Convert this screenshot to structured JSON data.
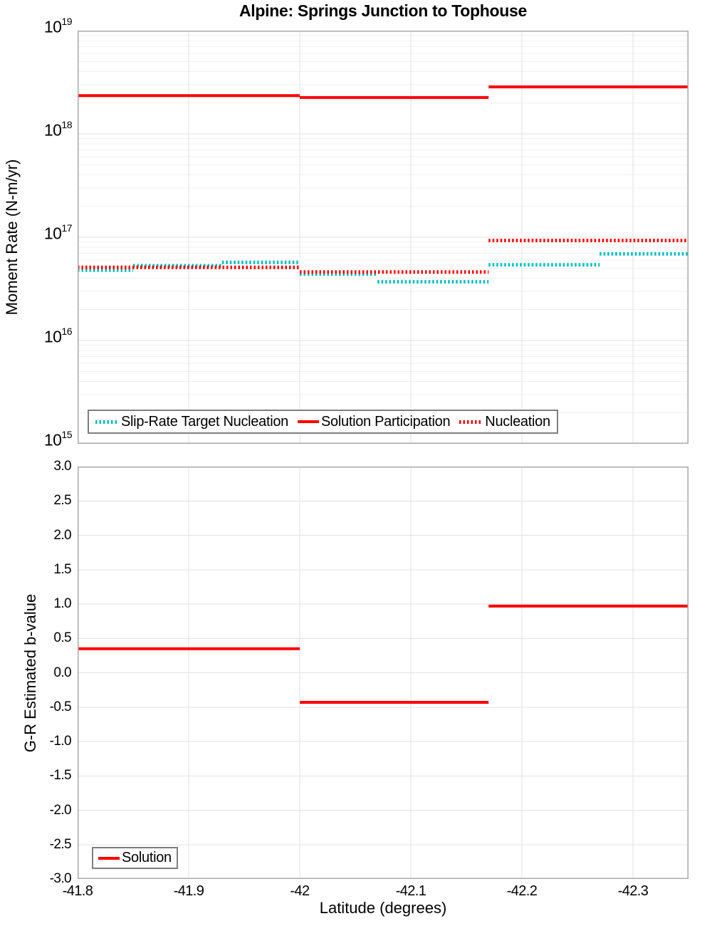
{
  "title": "Alpine: Springs Junction to Tophouse",
  "colors": {
    "red": "#ff0000",
    "teal": "#00bfbf",
    "grid_major": "#e2e2e2",
    "grid_minor": "#f0f0f0",
    "spine": "#aaaaaa",
    "legend_border": "#7f7f7f"
  },
  "x_axis": {
    "label": "Latitude (degrees)",
    "ticks": [
      "-41.8",
      "-41.9",
      "-42",
      "-42.1",
      "-42.2",
      "-42.3"
    ],
    "tick_values": [
      -41.8,
      -41.9,
      -42.0,
      -42.1,
      -42.2,
      -42.3
    ]
  },
  "chart_data": [
    {
      "type": "step-line",
      "name": "moment-rate",
      "title": "Alpine: Springs Junction to Tophouse",
      "ylabel": "Moment Rate (N-m/yr)",
      "xlabel": "Latitude (degrees)",
      "yscale": "log",
      "ylim": [
        1000000000000000.0,
        1e+19
      ],
      "xlim": [
        -41.8,
        -42.35
      ],
      "grid": "major+minor",
      "yticks": {
        "base": "10",
        "exponents": [
          19,
          18,
          17,
          16,
          15
        ]
      },
      "legend": {
        "position": "lower left",
        "items": [
          {
            "label": "Slip-Rate Target Nucleation",
            "style": "dotted",
            "color_key": "teal"
          },
          {
            "label": "Solution Participation",
            "style": "solid",
            "color_key": "red"
          },
          {
            "label": "Nucleation",
            "style": "dotted",
            "color_key": "red"
          }
        ]
      },
      "series": [
        {
          "name": "Slip-Rate Target Nucleation",
          "style": "dotted",
          "color_key": "teal",
          "segments": [
            [
              -41.8,
              -41.85,
              4.8e+16
            ],
            [
              -41.85,
              -41.93,
              5.3e+16
            ],
            [
              -41.93,
              -42.0,
              5.7e+16
            ],
            [
              -42.0,
              -42.07,
              4.4e+16
            ],
            [
              -42.07,
              -42.17,
              3.7e+16
            ],
            [
              -42.17,
              -42.27,
              5.4e+16
            ],
            [
              -42.27,
              -42.35,
              6.9e+16
            ]
          ]
        },
        {
          "name": "Solution Participation",
          "style": "solid",
          "color_key": "red",
          "segments": [
            [
              -41.8,
              -42.0,
              2.35e+18
            ],
            [
              -42.0,
              -42.17,
              2.25e+18
            ],
            [
              -42.17,
              -42.35,
              2.85e+18
            ]
          ]
        },
        {
          "name": "Nucleation",
          "style": "dotted",
          "color_key": "red",
          "segments": [
            [
              -41.8,
              -42.0,
              5.1e+16
            ],
            [
              -42.0,
              -42.17,
              4.6e+16
            ],
            [
              -42.17,
              -42.35,
              9.3e+16
            ]
          ]
        }
      ]
    },
    {
      "type": "step-line",
      "name": "b-value",
      "ylabel": "G-R Estimated b-value",
      "xlabel": "Latitude (degrees)",
      "yscale": "linear",
      "ylim": [
        -3.0,
        3.0
      ],
      "xlim": [
        -41.8,
        -42.35
      ],
      "grid": "major",
      "yticks": {
        "values": [
          3.0,
          2.5,
          2.0,
          1.5,
          1.0,
          0.5,
          0.0,
          -0.5,
          -1.0,
          -1.5,
          -2.0,
          -2.5,
          -3.0
        ],
        "labels": [
          "3.0",
          "2.5",
          "2.0",
          "1.5",
          "1.0",
          "0.5",
          "0.0",
          "-0.5",
          "-1.0",
          "-1.5",
          "-2.0",
          "-2.5",
          "-3.0"
        ]
      },
      "legend": {
        "position": "lower left",
        "items": [
          {
            "label": "Solution",
            "style": "solid",
            "color_key": "red"
          }
        ]
      },
      "series": [
        {
          "name": "Solution",
          "style": "solid",
          "color_key": "red",
          "segments": [
            [
              -41.8,
              -42.0,
              0.35
            ],
            [
              -42.0,
              -42.17,
              -0.43
            ],
            [
              -42.17,
              -42.35,
              0.97
            ]
          ]
        }
      ]
    }
  ]
}
